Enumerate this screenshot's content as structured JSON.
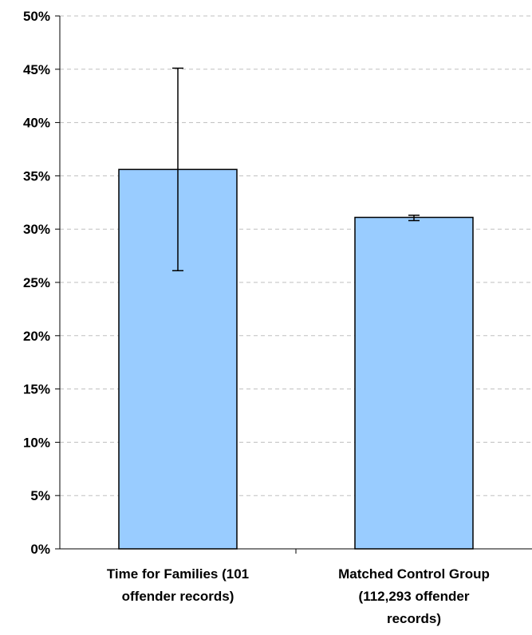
{
  "chart_data": {
    "type": "bar",
    "title": "",
    "xlabel": "",
    "ylabel": "",
    "ylim": [
      0,
      50
    ],
    "y_tick_step": 5,
    "y_tick_suffix": "%",
    "grid": "horizontal-dashed",
    "categories": [
      [
        "Time for Families (101",
        "offender records)"
      ],
      [
        "Matched Control Group",
        "(112,293 offender",
        "records)"
      ]
    ],
    "values": [
      35.6,
      31.1
    ],
    "error_bars": [
      {
        "low": 26.1,
        "high": 45.1
      },
      {
        "low": 30.8,
        "high": 31.3
      }
    ],
    "bar_color": "#99ccff",
    "bar_edge_color": "#000000",
    "grid_color": "#bfbfbf"
  }
}
